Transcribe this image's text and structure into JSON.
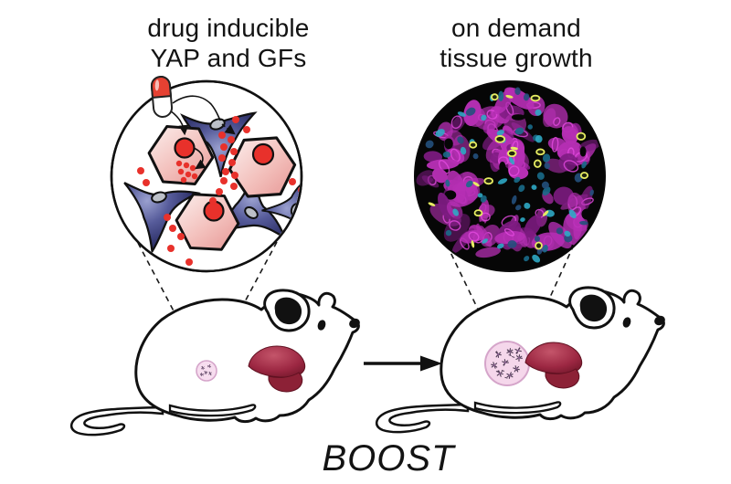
{
  "figure": {
    "left_panel_label": "drug inducible\nYAP and GFs",
    "right_panel_label": "on demand\ntissue growth",
    "caption": "BOOST"
  },
  "palette": {
    "paper": "#ffffff",
    "ink": "#131313",
    "outline": "#111111",
    "red": "#e8312b",
    "pill_red": "#e64132",
    "hex_light": "#fbeeec",
    "hex_mid": "#f3c0bc",
    "hex_deep": "#e79795",
    "star_dark": "#23265c",
    "star_mid": "#565b9a",
    "star_light": "#9aa0cf",
    "star_nucleus": "#bcc0c8",
    "liver_light": "#c4556a",
    "liver_mid": "#9c2742",
    "liver_dark": "#641222",
    "liver_lobe": "#8c2136",
    "implant_fill": "#f7ddef",
    "implant_stroke": "#d5a5ca",
    "speck": "#4f3b55",
    "micro_bg": "#060606",
    "micro_magenta": "#b62fb4",
    "micro_magenta_deep": "#7c1b80",
    "micro_magenta_bright": "#e44ae0",
    "micro_cyan": "#2fa9c4",
    "micro_cyan_deep": "#1a6c8a",
    "micro_blue": "#24507c",
    "micro_yellow": "#e6ec62"
  }
}
